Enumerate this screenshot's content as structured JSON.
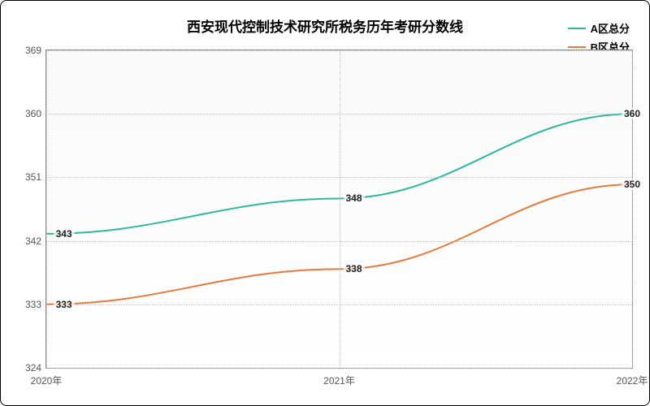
{
  "chart": {
    "type": "line",
    "title": "西安现代控制技术研究所税务历年考研分数线",
    "title_fontsize": 17,
    "background_color": "#ffffff",
    "plot_bg_gradient": [
      "#f9f9f9",
      "#ffffff"
    ],
    "border_color": "#888888",
    "grid_color": "#c0c0c0",
    "x": {
      "categories": [
        "2020年",
        "2021年",
        "2022年"
      ],
      "positions_pct": [
        0,
        50,
        100
      ]
    },
    "y": {
      "min": 324,
      "max": 369,
      "tick_step": 9,
      "ticks": [
        324,
        333,
        342,
        351,
        360,
        369
      ],
      "label_fontsize": 12,
      "label_color": "#555555"
    },
    "series": [
      {
        "name": "A区总分",
        "color": "#2fb8a0",
        "line_width": 2,
        "values": [
          343,
          348,
          360
        ],
        "smooth": true
      },
      {
        "name": "B区总分",
        "color": "#e67a3c",
        "line_width": 2,
        "values": [
          333,
          338,
          350
        ],
        "smooth": true
      }
    ],
    "legend": {
      "position": "top-right",
      "fontsize": 13,
      "font_weight": "bold"
    },
    "point_label": {
      "fontsize": 12,
      "font_weight": "bold",
      "color": "#222222",
      "bg": "rgba(255,255,255,0.7)"
    }
  }
}
